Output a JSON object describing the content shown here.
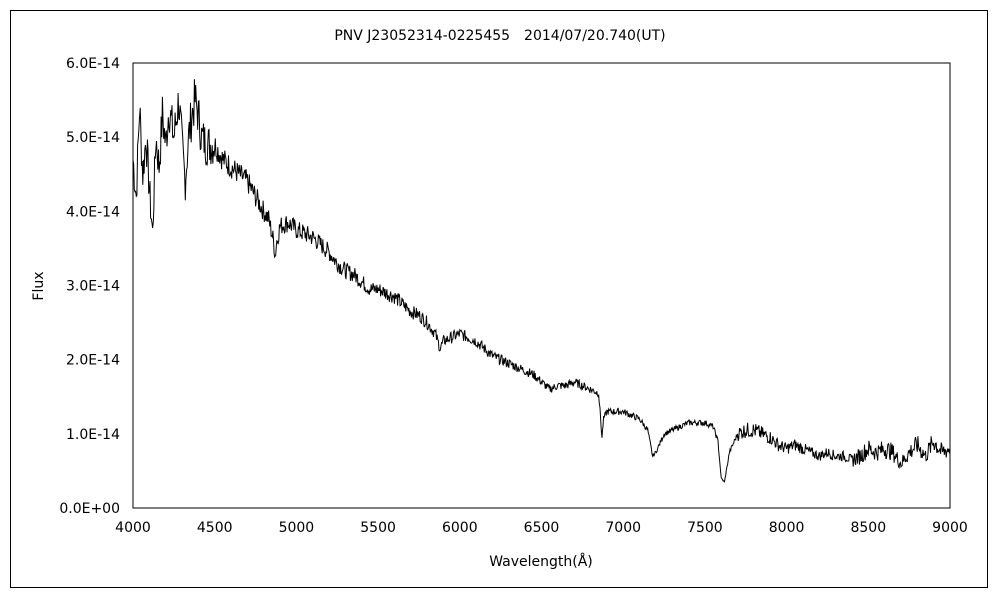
{
  "chart_data": {
    "type": "line",
    "title": "PNV J23052314-0225455　2014/07/20.740(UT)",
    "xlabel": "Wavelength(Å)",
    "ylabel": "Flux",
    "xlim": [
      4000,
      9000
    ],
    "ylim": [
      0,
      6e-14
    ],
    "x_ticks": [
      4000,
      4500,
      5000,
      5500,
      6000,
      6500,
      7000,
      7500,
      8000,
      8500,
      9000
    ],
    "x_tick_labels": [
      "4000",
      "4500",
      "5000",
      "5500",
      "6000",
      "6500",
      "7000",
      "7500",
      "8000",
      "8500",
      "9000"
    ],
    "y_ticks": [
      0,
      1e-14,
      2e-14,
      3e-14,
      4e-14,
      5e-14,
      6e-14
    ],
    "y_tick_labels": [
      "0.0E+00",
      "1.0E-14",
      "2.0E-14",
      "3.0E-14",
      "4.0E-14",
      "5.0E-14",
      "6.0E-14"
    ],
    "grid": false,
    "legend": "none",
    "line_color": "#000000",
    "series": [
      {
        "x": [
          4000,
          4020,
          4040,
          4060,
          4080,
          4100,
          4120,
          4140,
          4160,
          4180,
          4200,
          4220,
          4250,
          4280,
          4300,
          4320,
          4340,
          4360,
          4380,
          4400,
          4420,
          4450,
          4500,
          4550,
          4600,
          4650,
          4700,
          4750,
          4800,
          4830,
          4860,
          4870,
          4880,
          4900,
          4950,
          5000,
          5050,
          5100,
          5150,
          5200,
          5250,
          5300,
          5350,
          5400,
          5450,
          5500,
          5550,
          5600,
          5650,
          5700,
          5750,
          5800,
          5850,
          5880,
          5900,
          5950,
          6000,
          6050,
          6100,
          6150,
          6200,
          6250,
          6300,
          6350,
          6400,
          6450,
          6500,
          6550,
          6600,
          6650,
          6700,
          6750,
          6800,
          6850,
          6870,
          6880,
          6900,
          6950,
          7000,
          7050,
          7100,
          7150,
          7180,
          7200,
          7250,
          7300,
          7350,
          7400,
          7450,
          7500,
          7550,
          7580,
          7600,
          7620,
          7650,
          7700,
          7750,
          7800,
          7850,
          7900,
          7950,
          8000,
          8050,
          8100,
          8150,
          8200,
          8250,
          8300,
          8350,
          8400,
          8450,
          8500,
          8550,
          8600,
          8650,
          8700,
          8750,
          8800,
          8850,
          8900,
          8950,
          9000
        ],
        "y": [
          4.7e-14,
          4.2e-14,
          5.4e-14,
          4.5e-14,
          5e-14,
          4.3e-14,
          3.7e-14,
          5e-14,
          4.6e-14,
          5.3e-14,
          4.9e-14,
          5.4e-14,
          5e-14,
          5.5e-14,
          4.9e-14,
          4.4e-14,
          5e-14,
          5.3e-14,
          5.5e-14,
          5.3e-14,
          5e-14,
          4.9e-14,
          4.9e-14,
          4.7e-14,
          4.6e-14,
          4.5e-14,
          4.4e-14,
          4.2e-14,
          4e-14,
          3.9e-14,
          3.6e-14,
          3.4e-14,
          3.6e-14,
          3.8e-14,
          3.85e-14,
          3.75e-14,
          3.7e-14,
          3.65e-14,
          3.55e-14,
          3.45e-14,
          3.3e-14,
          3.2e-14,
          3.15e-14,
          3.05e-14,
          2.95e-14,
          2.95e-14,
          2.9e-14,
          2.85e-14,
          2.75e-14,
          2.65e-14,
          2.6e-14,
          2.5e-14,
          2.35e-14,
          2.15e-14,
          2.25e-14,
          2.3e-14,
          2.35e-14,
          2.3e-14,
          2.25e-14,
          2.15e-14,
          2.05e-14,
          2e-14,
          1.95e-14,
          1.9e-14,
          1.85e-14,
          1.8e-14,
          1.7e-14,
          1.6e-14,
          1.65e-14,
          1.65e-14,
          1.7e-14,
          1.65e-14,
          1.6e-14,
          1.55e-14,
          9.5e-15,
          1.2e-14,
          1.3e-14,
          1.3e-14,
          1.3e-14,
          1.25e-14,
          1.2e-14,
          1.05e-14,
          7e-15,
          7.5e-15,
          1e-14,
          1.05e-14,
          1.1e-14,
          1.15e-14,
          1.15e-14,
          1.15e-14,
          1.1e-14,
          9e-15,
          4e-15,
          3.5e-15,
          7.5e-15,
          1e-14,
          1.05e-14,
          1.05e-14,
          1e-14,
          9.5e-15,
          8.5e-15,
          8e-15,
          8.5e-15,
          8e-15,
          7.5e-15,
          7e-15,
          7.5e-15,
          7e-15,
          7e-15,
          6.5e-15,
          7e-15,
          8e-15,
          7.5e-15,
          8e-15,
          7.5e-15,
          6e-15,
          7.5e-15,
          8.5e-15,
          7e-15,
          9e-15,
          7.5e-15,
          8e-15
        ]
      }
    ]
  }
}
